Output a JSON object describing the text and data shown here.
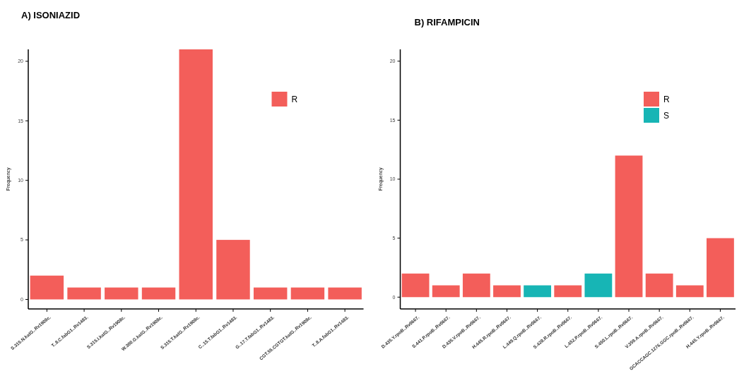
{
  "chart_data": [
    {
      "type": "bar",
      "title": "A) ISONIAZID",
      "ylabel": "Frequency",
      "categories": [
        "S.315.N.katG..Rv1908c.",
        "T..8.C.fabG1..Rv1483.",
        "S.315.I.katG..Rv1908c.",
        "W.300.G.katG..Rv1908c.",
        "S.315.T.katG..Rv1908c.",
        "C..15.T.fabG1..Rv1483.",
        "G..17.T.fabG1..Rv1483.",
        "CGT.55.CGTGT.katG..Rv1908c.",
        "T..8.A.fabG1..Rv1483."
      ],
      "series": [
        {
          "name": "R",
          "color": "#f35e5a",
          "values": [
            2,
            1,
            1,
            1,
            21,
            5,
            1,
            1,
            1
          ]
        }
      ],
      "ylim": [
        -0.8,
        21
      ],
      "yticks": [
        0,
        5,
        10,
        15,
        20
      ],
      "grid": false,
      "legend": "top right"
    },
    {
      "type": "bar",
      "title": "B) RIFAMPICIN",
      "ylabel": "Frequency",
      "categories": [
        "D.435.Y.rpoB..Rv0667.",
        "S.441.P.rpoB..Rv0667.",
        "D.435.V.rpoB..Rv0667.",
        "H.445.R.rpoB..Rv0667.",
        "L.449.Q.rpoB..Rv0667.",
        "S.428.R.rpoB..Rv0667.",
        "L.452.P.rpoB..Rv0667.",
        "S.450.L.rpoB..Rv0667.",
        "V.359.A.rpoB..Rv0667.",
        "GCACCAGC.1276.GGC.rpoB..Rv0667.",
        "H.445.Y.rpoB..Rv0667."
      ],
      "series": [
        {
          "name": "R",
          "color": "#f35e5a",
          "values": [
            2,
            1,
            2,
            1,
            null,
            1,
            null,
            12,
            2,
            1,
            5
          ]
        },
        {
          "name": "S",
          "color": "#17b5b5",
          "values": [
            null,
            null,
            null,
            null,
            1,
            null,
            2,
            null,
            null,
            null,
            null
          ]
        }
      ],
      "ylim": [
        -1,
        21
      ],
      "yticks": [
        0,
        5,
        10,
        15,
        20
      ],
      "grid": false,
      "legend": "top right"
    }
  ]
}
